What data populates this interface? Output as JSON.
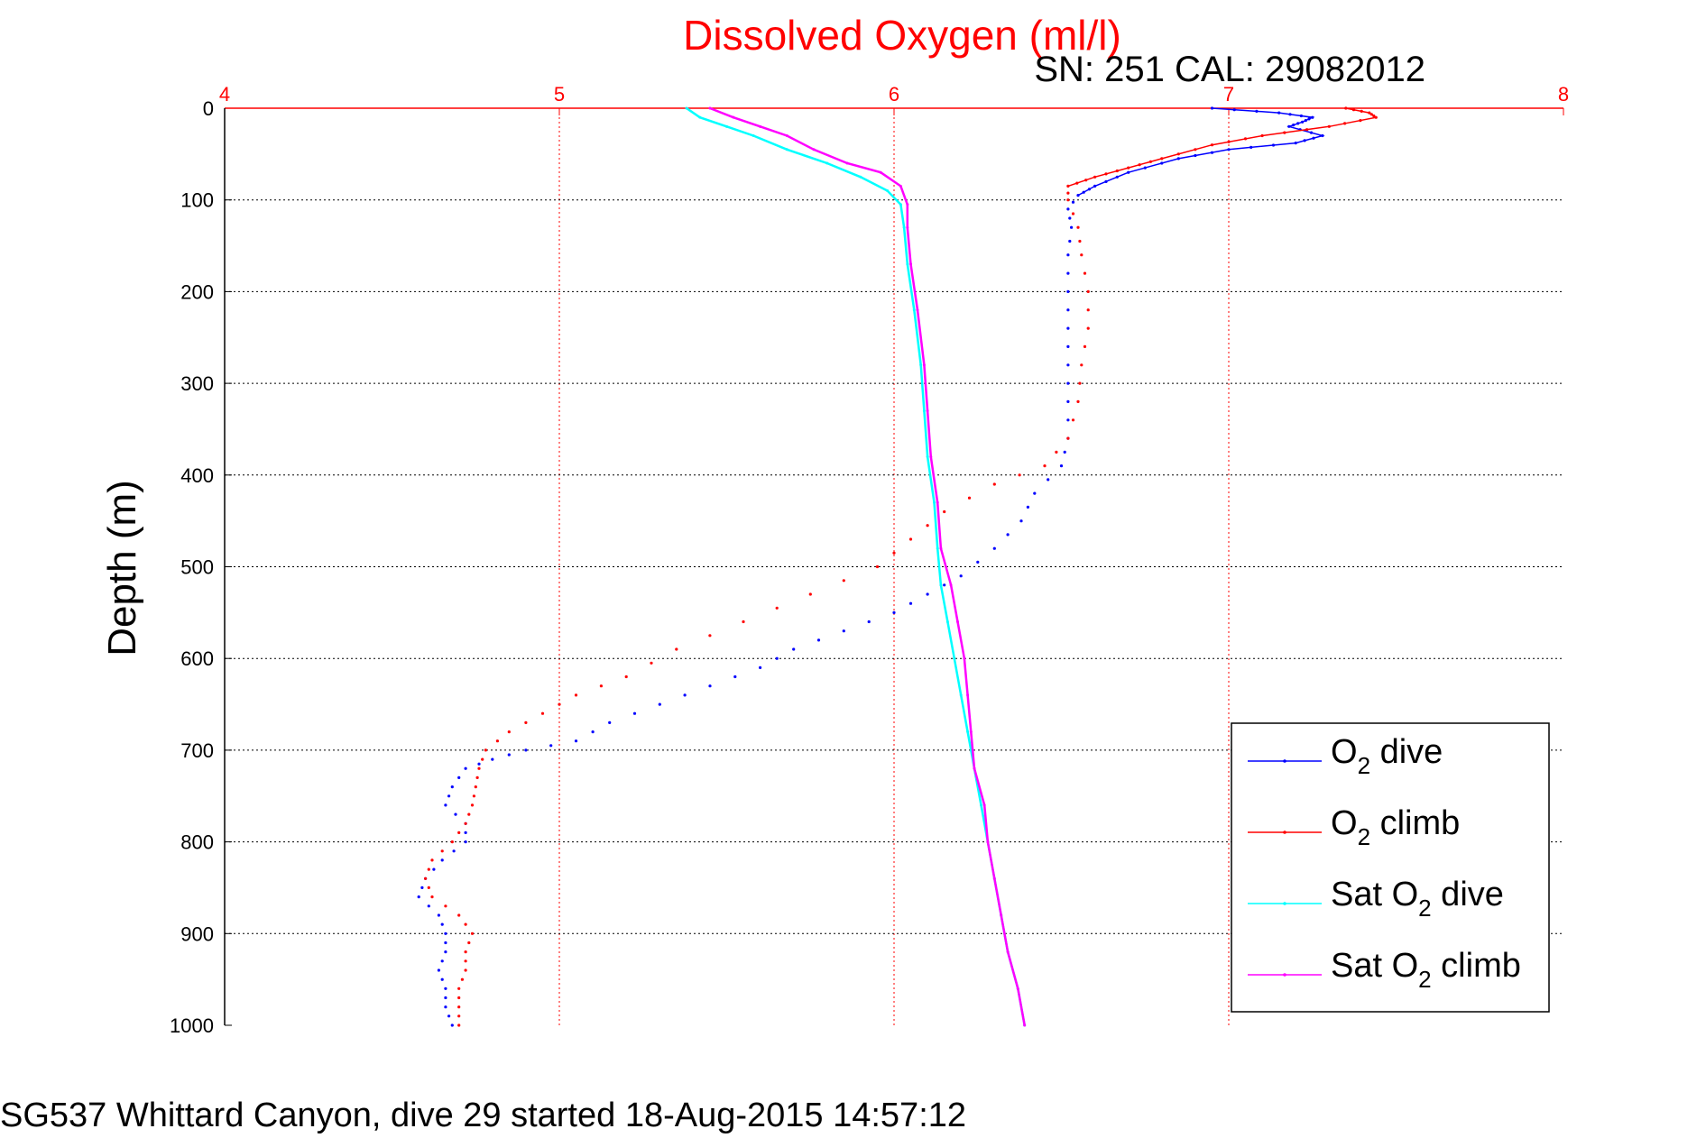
{
  "chart_data": {
    "type": "scatter",
    "title": "Dissolved Oxygen (ml/l)",
    "subtitle": "SN: 251  CAL: 29082012",
    "ylabel": "Depth (m)",
    "caption": "SG537 Whittard Canyon, dive 29 started 18-Aug-2015 14:57:12",
    "xlim": [
      4,
      8
    ],
    "ylim": [
      0,
      1000
    ],
    "y_reversed": true,
    "x_axis_position": "top",
    "x_ticks": [
      "4",
      "5",
      "6",
      "7",
      "8"
    ],
    "y_ticks": [
      "0",
      "100",
      "200",
      "300",
      "400",
      "500",
      "600",
      "700",
      "800",
      "900",
      "1000"
    ],
    "grid": true,
    "legend_position": "bottom-right",
    "legend": [
      {
        "text": "O",
        "sub": "2",
        "rest": " dive"
      },
      {
        "text": "O",
        "sub": "2",
        "rest": " climb"
      },
      {
        "text": "Sat O",
        "sub": "2",
        "rest": " dive"
      },
      {
        "text": "Sat O",
        "sub": "2",
        "rest": " climb"
      }
    ],
    "series": [
      {
        "color": "#0000ff",
        "style": "dots",
        "points": [
          [
            6.95,
            0
          ],
          [
            7.15,
            5
          ],
          [
            7.25,
            10
          ],
          [
            7.22,
            15
          ],
          [
            7.18,
            20
          ],
          [
            7.28,
            30
          ],
          [
            7.2,
            38
          ],
          [
            7.0,
            45
          ],
          [
            6.85,
            55
          ],
          [
            6.7,
            70
          ],
          [
            6.6,
            85
          ],
          [
            6.55,
            95
          ],
          [
            6.52,
            110
          ],
          [
            6.53,
            130
          ],
          [
            6.52,
            160
          ],
          [
            6.52,
            200
          ],
          [
            6.52,
            240
          ],
          [
            6.52,
            280
          ],
          [
            6.52,
            320
          ],
          [
            6.52,
            360
          ],
          [
            6.5,
            390
          ],
          [
            6.42,
            420
          ],
          [
            6.38,
            450
          ],
          [
            6.3,
            480
          ],
          [
            6.2,
            510
          ],
          [
            6.1,
            530
          ],
          [
            6.0,
            550
          ],
          [
            5.85,
            570
          ],
          [
            5.7,
            590
          ],
          [
            5.6,
            610
          ],
          [
            5.45,
            630
          ],
          [
            5.3,
            650
          ],
          [
            5.15,
            670
          ],
          [
            5.05,
            690
          ],
          [
            4.9,
            700
          ],
          [
            4.8,
            710
          ],
          [
            4.72,
            720
          ],
          [
            4.68,
            740
          ],
          [
            4.66,
            760
          ],
          [
            4.72,
            780
          ],
          [
            4.72,
            800
          ],
          [
            4.65,
            820
          ],
          [
            4.6,
            840
          ],
          [
            4.58,
            860
          ],
          [
            4.64,
            880
          ],
          [
            4.66,
            900
          ],
          [
            4.66,
            920
          ],
          [
            4.64,
            940
          ],
          [
            4.66,
            960
          ],
          [
            4.66,
            980
          ],
          [
            4.68,
            1000
          ]
        ]
      },
      {
        "color": "#ff0000",
        "style": "dots",
        "points": [
          [
            7.35,
            0
          ],
          [
            7.42,
            5
          ],
          [
            7.44,
            10
          ],
          [
            7.3,
            20
          ],
          [
            7.1,
            30
          ],
          [
            6.95,
            40
          ],
          [
            6.8,
            55
          ],
          [
            6.7,
            65
          ],
          [
            6.6,
            75
          ],
          [
            6.52,
            85
          ],
          [
            6.52,
            100
          ],
          [
            6.55,
            130
          ],
          [
            6.56,
            160
          ],
          [
            6.58,
            200
          ],
          [
            6.58,
            240
          ],
          [
            6.56,
            280
          ],
          [
            6.55,
            320
          ],
          [
            6.52,
            360
          ],
          [
            6.45,
            390
          ],
          [
            6.3,
            410
          ],
          [
            6.15,
            440
          ],
          [
            6.05,
            470
          ],
          [
            5.95,
            500
          ],
          [
            5.75,
            530
          ],
          [
            5.55,
            560
          ],
          [
            5.35,
            590
          ],
          [
            5.2,
            620
          ],
          [
            5.05,
            640
          ],
          [
            4.95,
            660
          ],
          [
            4.85,
            680
          ],
          [
            4.78,
            700
          ],
          [
            4.76,
            720
          ],
          [
            4.75,
            740
          ],
          [
            4.74,
            760
          ],
          [
            4.72,
            780
          ],
          [
            4.68,
            800
          ],
          [
            4.62,
            820
          ],
          [
            4.6,
            840
          ],
          [
            4.62,
            860
          ],
          [
            4.7,
            880
          ],
          [
            4.74,
            900
          ],
          [
            4.72,
            920
          ],
          [
            4.72,
            940
          ],
          [
            4.7,
            960
          ],
          [
            4.7,
            980
          ],
          [
            4.7,
            1000
          ]
        ]
      },
      {
        "color": "#00ffff",
        "style": "line",
        "points": [
          [
            5.38,
            0
          ],
          [
            5.42,
            10
          ],
          [
            5.5,
            20
          ],
          [
            5.58,
            30
          ],
          [
            5.68,
            45
          ],
          [
            5.8,
            60
          ],
          [
            5.9,
            75
          ],
          [
            5.98,
            90
          ],
          [
            6.02,
            105
          ],
          [
            6.03,
            130
          ],
          [
            6.04,
            170
          ],
          [
            6.06,
            220
          ],
          [
            6.08,
            280
          ],
          [
            6.09,
            330
          ],
          [
            6.1,
            380
          ],
          [
            6.12,
            430
          ],
          [
            6.13,
            480
          ],
          [
            6.14,
            520
          ],
          [
            6.16,
            560
          ],
          [
            6.18,
            600
          ],
          [
            6.2,
            640
          ],
          [
            6.22,
            680
          ],
          [
            6.24,
            720
          ],
          [
            6.26,
            760
          ],
          [
            6.28,
            800
          ],
          [
            6.3,
            840
          ],
          [
            6.32,
            880
          ],
          [
            6.34,
            920
          ],
          [
            6.37,
            960
          ],
          [
            6.39,
            1000
          ]
        ]
      },
      {
        "color": "#ff00ff",
        "style": "line",
        "points": [
          [
            5.45,
            0
          ],
          [
            5.52,
            10
          ],
          [
            5.6,
            20
          ],
          [
            5.68,
            30
          ],
          [
            5.76,
            45
          ],
          [
            5.86,
            60
          ],
          [
            5.96,
            70
          ],
          [
            6.02,
            85
          ],
          [
            6.04,
            105
          ],
          [
            6.04,
            130
          ],
          [
            6.05,
            170
          ],
          [
            6.07,
            220
          ],
          [
            6.09,
            280
          ],
          [
            6.1,
            330
          ],
          [
            6.11,
            380
          ],
          [
            6.13,
            430
          ],
          [
            6.14,
            480
          ],
          [
            6.17,
            520
          ],
          [
            6.19,
            560
          ],
          [
            6.21,
            600
          ],
          [
            6.22,
            640
          ],
          [
            6.23,
            680
          ],
          [
            6.24,
            720
          ],
          [
            6.27,
            760
          ],
          [
            6.28,
            800
          ],
          [
            6.3,
            840
          ],
          [
            6.32,
            880
          ],
          [
            6.34,
            920
          ],
          [
            6.37,
            960
          ],
          [
            6.39,
            1000
          ]
        ]
      }
    ]
  }
}
